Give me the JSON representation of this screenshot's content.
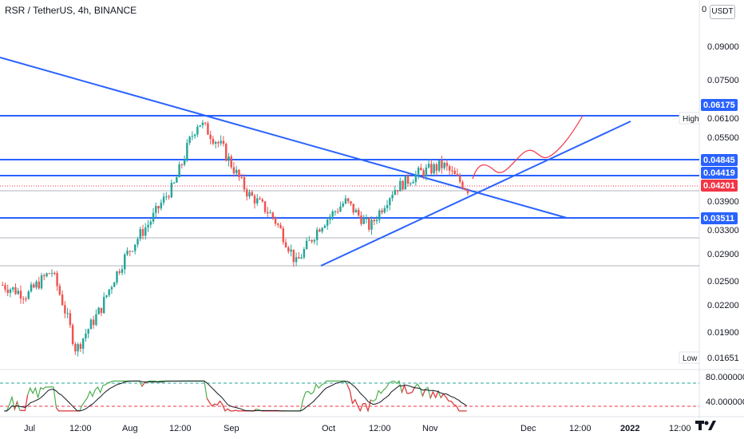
{
  "header": {
    "title": "RSR / TetherUS, 4h, BINANCE",
    "currency": "USDT",
    "axis_zero": "0"
  },
  "colors": {
    "up": "#26a69a",
    "down": "#ef5350",
    "trendline": "#2962ff",
    "current_tag": "#f23645",
    "level_tag": "#2962ff",
    "projection": "#f23645",
    "rsi_fast": "#4caf50",
    "rsi_fast_low": "#f23645",
    "rsi_slow": "#131722",
    "rsi_upper_band": "#26a69a",
    "rsi_lower_band": "#f23645"
  },
  "price_axis": {
    "ticks": [
      "0.09000",
      "0.07500",
      "0.06100",
      "0.05500",
      "0.03900",
      "0.03300",
      "0.02900",
      "0.02500",
      "0.02200",
      "0.01900",
      "0.01651"
    ],
    "high_label": "High",
    "low_label": "Low"
  },
  "level_tags": [
    {
      "value": "0.06175",
      "kind": "level"
    },
    {
      "value": "0.04845",
      "kind": "level"
    },
    {
      "value": "0.04419",
      "kind": "level"
    },
    {
      "value": "0.04201",
      "kind": "current"
    },
    {
      "value": "0.03511",
      "kind": "level"
    }
  ],
  "rsi_axis": {
    "ticks": [
      "80.000000",
      "40.000000"
    ]
  },
  "time_axis": {
    "labels": [
      "Jul",
      "12:00",
      "Aug",
      "12:00",
      "Sep",
      "Oct",
      "12:00",
      "Nov",
      "Dec",
      "12:00",
      "2022",
      "12:00"
    ]
  },
  "chart_data": {
    "type": "candlestick",
    "symbol": "RSR / TetherUS",
    "timeframe": "4h",
    "exchange": "BINANCE",
    "price_trend_keypoints": [
      {
        "t": "Jul start",
        "close": 0.0245
      },
      {
        "t": "Jul 12:00",
        "close": 0.0232
      },
      {
        "t": "mid-Jul",
        "close": 0.0265
      },
      {
        "t": "late Jul",
        "close": 0.0172
      },
      {
        "t": "late Jul",
        "close": 0.0215
      },
      {
        "t": "early Aug",
        "close": 0.0285
      },
      {
        "t": "Aug",
        "close": 0.0345
      },
      {
        "t": "Aug 12:00",
        "close": 0.043
      },
      {
        "t": "late Aug",
        "close": 0.06
      },
      {
        "t": "early Sep",
        "close": 0.052
      },
      {
        "t": "Sep",
        "close": 0.041
      },
      {
        "t": "mid-Sep",
        "close": 0.036
      },
      {
        "t": "late Sep",
        "close": 0.0275
      },
      {
        "t": "early Oct",
        "close": 0.034
      },
      {
        "t": "Oct",
        "close": 0.039
      },
      {
        "t": "Oct 12:00",
        "close": 0.0335
      },
      {
        "t": "late Oct",
        "close": 0.042
      },
      {
        "t": "early Nov",
        "close": 0.046
      },
      {
        "t": "Nov",
        "close": 0.048
      },
      {
        "t": "Nov",
        "close": 0.042
      }
    ],
    "horizontal_levels": [
      0.06175,
      0.04845,
      0.04419,
      0.03511
    ],
    "current_price": 0.04201,
    "high": 0.061,
    "low": 0.01651,
    "indicator": {
      "name": "RSI",
      "levels": [
        80,
        40
      ]
    },
    "annotations": [
      "descending trendline",
      "ascending trendline",
      "projected path (red curve)"
    ]
  }
}
